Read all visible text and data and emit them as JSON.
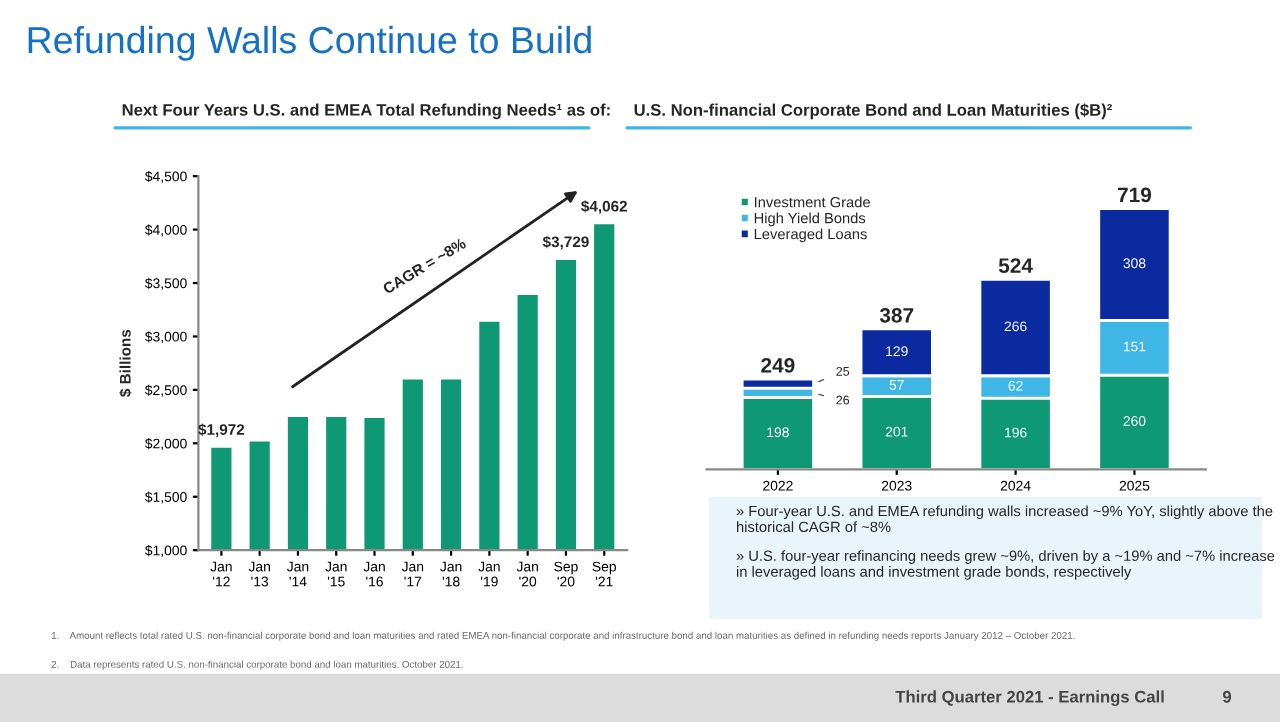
{
  "chart_data": [
    {
      "type": "bar",
      "title": "Next Four Years U.S. and EMEA Total Refunding Needs¹ as of:",
      "ylabel": "$ Billions",
      "categories": [
        "Jan\n'12",
        "Jan\n'13",
        "Jan\n'14",
        "Jan\n'15",
        "Jan\n'16",
        "Jan\n'17",
        "Jan\n'18",
        "Jan\n'19",
        "Jan\n'20",
        "Sep\n'20",
        "Sep\n'21"
      ],
      "values": [
        1972,
        2030,
        2260,
        2260,
        2250,
        2610,
        2610,
        3150,
        3400,
        3729,
        4062
      ],
      "value_labels": [
        "$1,972",
        null,
        null,
        null,
        null,
        null,
        null,
        null,
        null,
        "$3,729",
        "$4,062"
      ],
      "color": "#0f9874",
      "ylim": [
        1000,
        4500
      ],
      "yticks": [
        {
          "value": 1000,
          "label": "$1,000"
        },
        {
          "value": 1500,
          "label": "$1,500"
        },
        {
          "value": 2000,
          "label": "$2,000"
        },
        {
          "value": 2500,
          "label": "$2,500"
        },
        {
          "value": 3000,
          "label": "$3,000"
        },
        {
          "value": 3500,
          "label": "$3,500"
        },
        {
          "value": 4000,
          "label": "$4,000"
        },
        {
          "value": 4500,
          "label": "$4,500"
        }
      ],
      "grid": false,
      "annotations": [
        "Refunding Walls Continue to Build",
        "CAGR = ~8%",
        "1.    Amount reflects total rated U.S. non-financial corporate bond and loan maturities and rated EMEA non-financial corporate and infrastructure bond and loan maturities as defined in refunding needs reports January 2012 – October 2021.",
        "2.    Data represents rated U.S. non-financial corporate bond and loan maturities. October 2021.",
        "Third Quarter 2021 - Earnings Call",
        "9"
      ]
    },
    {
      "type": "bar",
      "title": "U.S. Non-financial Corporate Bond and Loan Maturities ($B)²",
      "stacked": true,
      "categories": [
        "2022",
        "2023",
        "2024",
        "2025"
      ],
      "series": [
        {
          "name": "Investment Grade",
          "color": "#0f9874",
          "values": [
            198,
            201,
            196,
            260
          ]
        },
        {
          "name": "High Yield Bonds",
          "color": "#3fb6e6",
          "values": [
            26,
            57,
            62,
            151
          ]
        },
        {
          "name": "Leveraged Loans",
          "color": "#0b2aa0",
          "values": [
            25,
            129,
            266,
            308
          ]
        }
      ],
      "data_labels": true,
      "totals": [
        "249",
        "387",
        "524",
        "719"
      ],
      "legend": "top left",
      "grid": false,
      "tick_labels": "x",
      "annotations": [
        "» Four-year U.S. and EMEA refunding walls increased ~9% YoY, slightly above the historical CAGR of ~8%",
        "» U.S. four-year refinancing needs grew ~9%, driven by a ~19% and ~7% increase in leveraged loans and investment grade bonds, respectively"
      ]
    }
  ]
}
